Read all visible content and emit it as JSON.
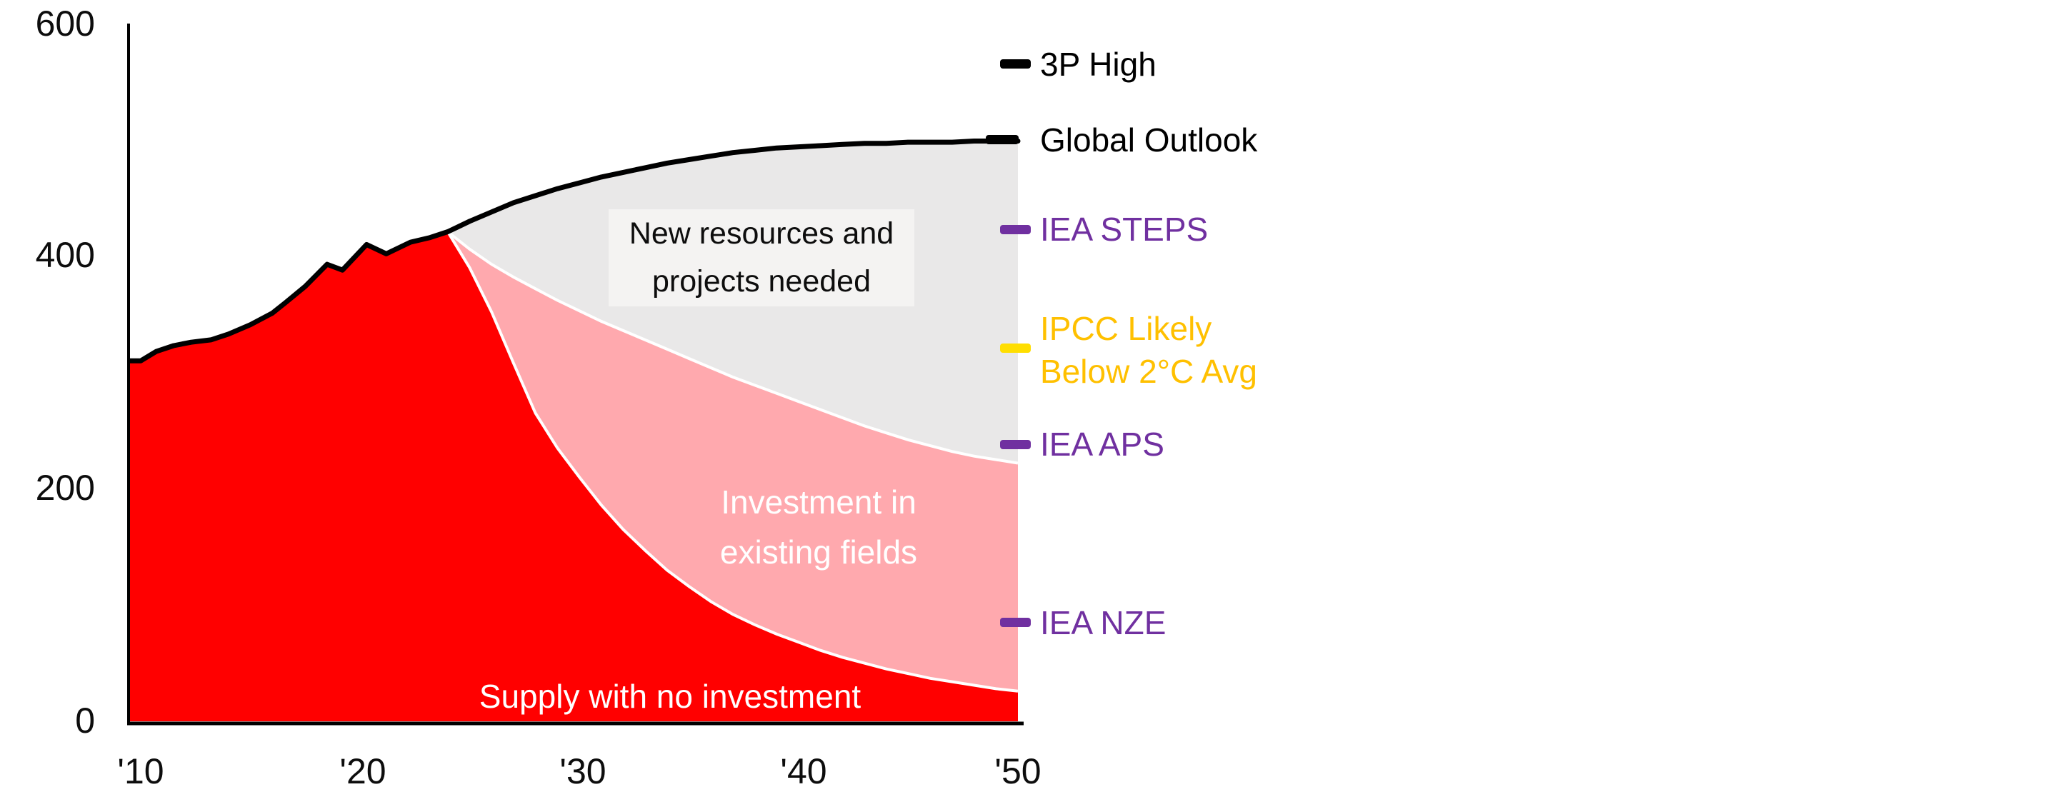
{
  "chart_data": {
    "type": "area",
    "title": "",
    "xlabel": "",
    "ylabel": "",
    "xlim": [
      2009.5,
      2050
    ],
    "ylim": [
      0,
      600
    ],
    "grid": false,
    "legend_position": "right",
    "y_ticks": [
      {
        "label": "600",
        "value": 600
      },
      {
        "label": "400",
        "value": 400
      },
      {
        "label": "200",
        "value": 200
      },
      {
        "label": "0",
        "value": 0
      }
    ],
    "x_ticks": [
      {
        "label": "'10",
        "year": 2010
      },
      {
        "label": "'20",
        "year": 2020
      },
      {
        "label": "'30",
        "year": 2030
      },
      {
        "label": "'40",
        "year": 2040
      },
      {
        "label": "'50",
        "year": 2050
      }
    ],
    "series": [
      {
        "name": "historical-supply-line",
        "color": "#000000",
        "points": [
          [
            2009.5,
            310
          ],
          [
            2010,
            310
          ],
          [
            2010.7,
            318
          ],
          [
            2011.5,
            323
          ],
          [
            2012.3,
            326
          ],
          [
            2013.2,
            328
          ],
          [
            2014,
            333
          ],
          [
            2015,
            341
          ],
          [
            2016,
            351
          ],
          [
            2016.6,
            360
          ],
          [
            2017.5,
            374
          ],
          [
            2018.5,
            393
          ],
          [
            2019.2,
            388
          ],
          [
            2020.3,
            410
          ],
          [
            2021.2,
            402
          ],
          [
            2022.3,
            412
          ],
          [
            2023.2,
            416
          ],
          [
            2024,
            421
          ]
        ]
      },
      {
        "name": "supply-with-no-investment",
        "color": "#FF0000",
        "points": [
          [
            2024,
            421
          ],
          [
            2025,
            390
          ],
          [
            2026,
            352
          ],
          [
            2027,
            308
          ],
          [
            2028,
            265
          ],
          [
            2029,
            235
          ],
          [
            2030,
            210
          ],
          [
            2031,
            186
          ],
          [
            2032,
            165
          ],
          [
            2033,
            147
          ],
          [
            2034,
            130
          ],
          [
            2035,
            116
          ],
          [
            2036,
            103
          ],
          [
            2037,
            92
          ],
          [
            2038,
            83
          ],
          [
            2039,
            75
          ],
          [
            2040,
            68
          ],
          [
            2041,
            61
          ],
          [
            2042,
            55
          ],
          [
            2043,
            50
          ],
          [
            2044,
            45
          ],
          [
            2045,
            41
          ],
          [
            2046,
            37
          ],
          [
            2047,
            34
          ],
          [
            2048,
            31
          ],
          [
            2049,
            28
          ],
          [
            2050,
            26
          ]
        ]
      },
      {
        "name": "investment-in-existing-fields",
        "color": "#FFA9AE",
        "points": [
          [
            2024,
            421
          ],
          [
            2025,
            406
          ],
          [
            2026,
            393
          ],
          [
            2027,
            382
          ],
          [
            2028,
            372
          ],
          [
            2029,
            362
          ],
          [
            2030,
            353
          ],
          [
            2031,
            344
          ],
          [
            2032,
            336
          ],
          [
            2033,
            328
          ],
          [
            2034,
            320
          ],
          [
            2035,
            312
          ],
          [
            2036,
            304
          ],
          [
            2037,
            296
          ],
          [
            2038,
            289
          ],
          [
            2039,
            282
          ],
          [
            2040,
            275
          ],
          [
            2041,
            268
          ],
          [
            2042,
            261
          ],
          [
            2043,
            254
          ],
          [
            2044,
            248
          ],
          [
            2045,
            242
          ],
          [
            2046,
            237
          ],
          [
            2047,
            232
          ],
          [
            2048,
            228
          ],
          [
            2049,
            225
          ],
          [
            2050,
            222
          ]
        ]
      },
      {
        "name": "global-outlook-new-resources",
        "color": "#E9E8E8",
        "points": [
          [
            2024,
            421
          ],
          [
            2025,
            430
          ],
          [
            2026,
            438
          ],
          [
            2027,
            446
          ],
          [
            2028,
            452
          ],
          [
            2029,
            458
          ],
          [
            2030,
            463
          ],
          [
            2031,
            468
          ],
          [
            2032,
            472
          ],
          [
            2033,
            476
          ],
          [
            2034,
            480
          ],
          [
            2035,
            483
          ],
          [
            2036,
            486
          ],
          [
            2037,
            489
          ],
          [
            2038,
            491
          ],
          [
            2039,
            493
          ],
          [
            2040,
            494
          ],
          [
            2041,
            495
          ],
          [
            2042,
            496
          ],
          [
            2043,
            497
          ],
          [
            2044,
            497
          ],
          [
            2045,
            498
          ],
          [
            2046,
            498
          ],
          [
            2047,
            498
          ],
          [
            2048,
            499
          ],
          [
            2049,
            499
          ],
          [
            2050,
            499
          ]
        ]
      }
    ]
  },
  "area_labels": {
    "new_resources": "New resources and\nprojects needed",
    "existing_fields": "Investment in\nexisting fields",
    "no_investment": "Supply with no investment"
  },
  "legend": {
    "items": [
      {
        "label": "3P High",
        "color": "#000000",
        "dash_color": "#000000",
        "value": 565
      },
      {
        "label": "Global Outlook",
        "color": "#000000",
        "dash_color": "#000000",
        "value": 500,
        "dash_x": 1380,
        "dash_w": 46
      },
      {
        "label": "IEA STEPS",
        "color": "#7030A0",
        "dash_color": "#7030A0",
        "value": 423
      },
      {
        "label": "IPCC Likely\nBelow 2°C Avg",
        "color": "#FFC000",
        "dash_color": "#FFDE00",
        "value": 321
      },
      {
        "label": "IEA APS",
        "color": "#7030A0",
        "dash_color": "#7030A0",
        "value": 238
      },
      {
        "label": "IEA NZE",
        "color": "#7030A0",
        "dash_color": "#7030A0",
        "value": 85
      }
    ]
  },
  "colors": {
    "red_area": "#FF0000",
    "pink_area": "#FFA9AE",
    "gray_area": "#E9E8E8",
    "label_box": "#F4F3F2",
    "line": "#000000",
    "separator": "#FFFFFF",
    "purple": "#7030A0",
    "gold_text": "#FFC000",
    "yellow_dash": "#FFDE00"
  }
}
